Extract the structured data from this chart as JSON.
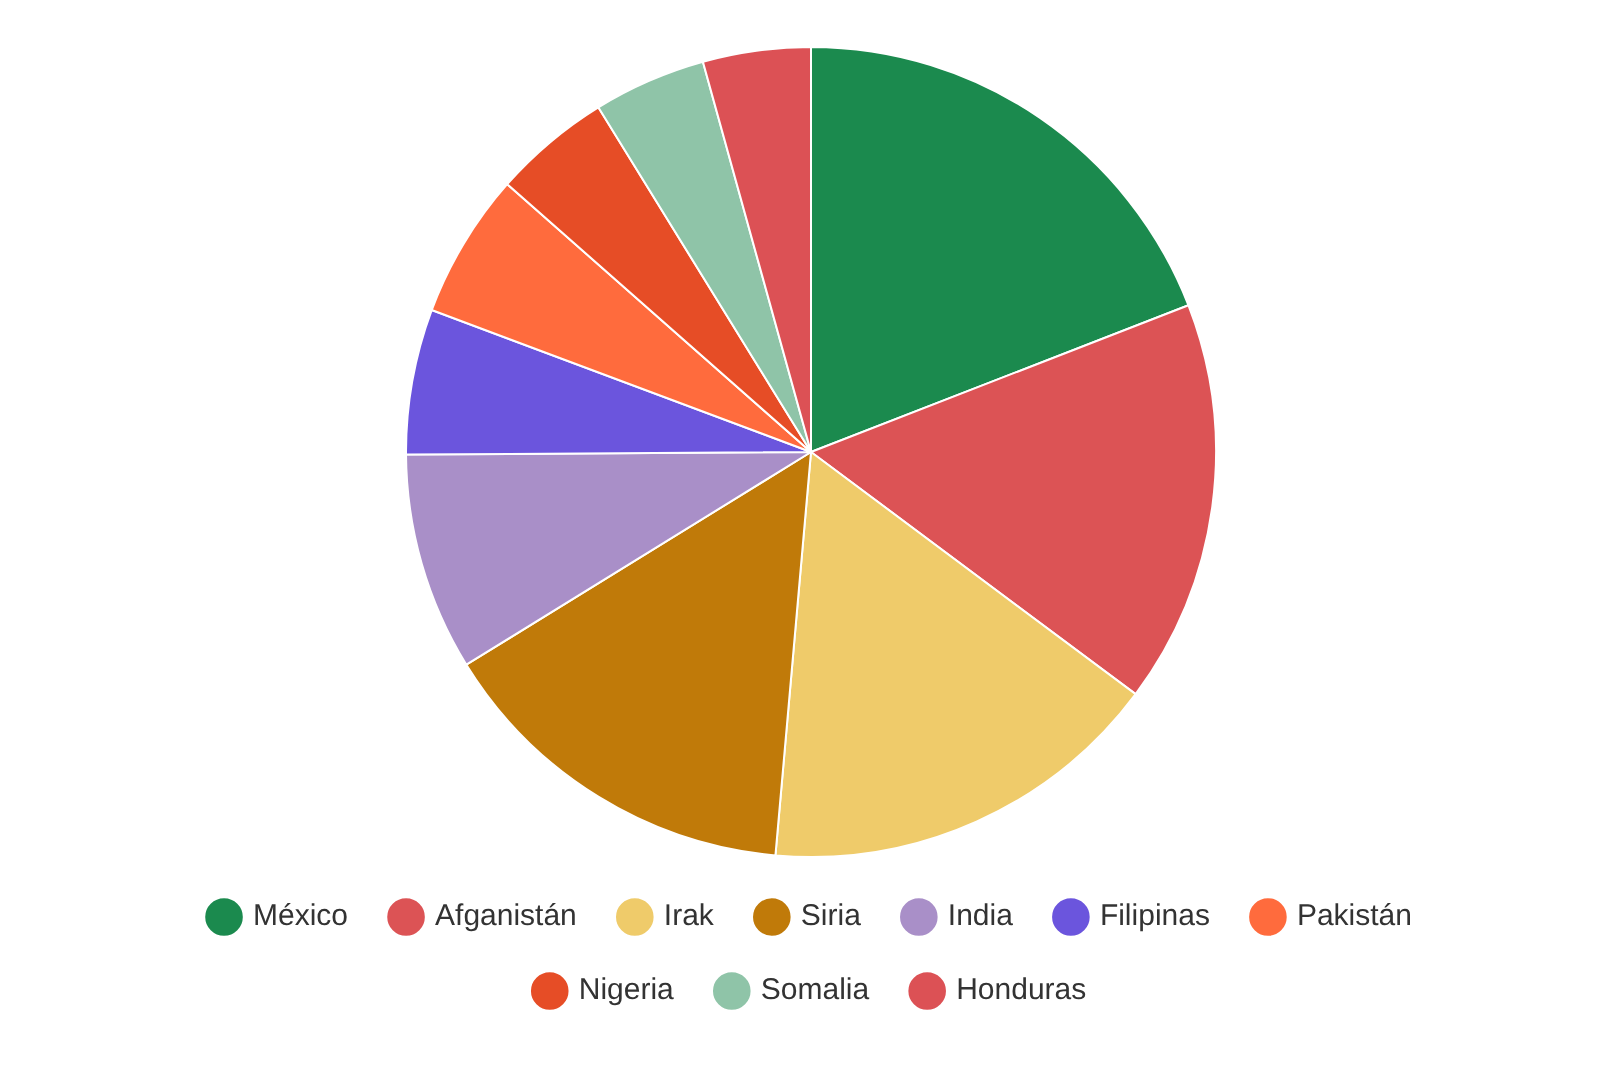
{
  "chart_data": {
    "type": "pie",
    "categories": [
      "México",
      "Afganistán",
      "Irak",
      "Siria",
      "India",
      "Filipinas",
      "Pakistán",
      "Nigeria",
      "Somalia",
      "Honduras"
    ],
    "values": [
      19.1,
      16.1,
      16.2,
      14.8,
      8.7,
      5.8,
      5.8,
      4.7,
      4.5,
      4.3
    ],
    "colors": [
      "#1b8a4e",
      "#dc5355",
      "#efcb6a",
      "#c07a09",
      "#a98fc8",
      "#6b55dd",
      "#ff6b3d",
      "#e64d26",
      "#8fc4a8",
      "#dc5155"
    ],
    "legend": "bottom"
  }
}
